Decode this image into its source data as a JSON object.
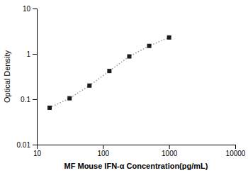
{
  "chart_data": {
    "type": "line",
    "x": [
      15.6,
      31.25,
      62.5,
      125,
      250,
      500,
      1000
    ],
    "series": [
      {
        "values": [
          0.065,
          0.105,
          0.2,
          0.42,
          0.88,
          1.5,
          2.3
        ],
        "color": "#999999",
        "colors": [
          "#1a1a1a",
          "#1a1a1a",
          "#1a1a1a",
          "#1a1a1a",
          "#1a1a1a",
          "#1a1a1a",
          "#1a1a1a"
        ],
        "marker": "square",
        "line_style": "dotted"
      }
    ],
    "xlabel": "MF Mouse IFN-α Concentration(pg/mL)",
    "ylabel": "Optical Density",
    "log": true,
    "xlim": [
      10,
      10000
    ],
    "ylim": [
      0.01,
      10
    ],
    "xticks": [
      10,
      100,
      1000,
      10000
    ],
    "yticks": [
      0.01,
      0.1,
      1,
      10
    ],
    "grid": false
  }
}
